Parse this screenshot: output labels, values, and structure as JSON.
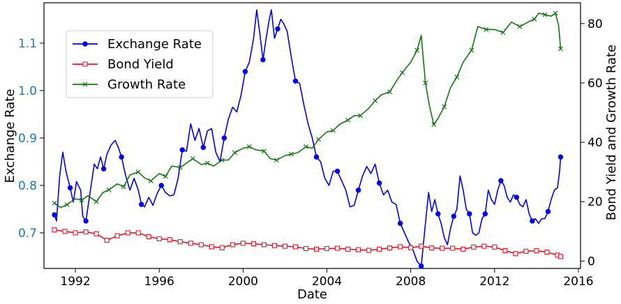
{
  "chart_data": {
    "type": "line",
    "title": "",
    "xlabel": "Date",
    "ylabel_left": "Exchange Rate",
    "ylabel_right": "Bond Yield and Growth Rate",
    "xlim": [
      1990.5,
      2016.1
    ],
    "ylim_left": [
      0.625,
      1.185
    ],
    "ylim_right": [
      -2.5,
      87
    ],
    "x_ticks": [
      {
        "v": 1992,
        "label": "1992"
      },
      {
        "v": 1996,
        "label": "1996"
      },
      {
        "v": 2000,
        "label": "2000"
      },
      {
        "v": 2004,
        "label": "2004"
      },
      {
        "v": 2008,
        "label": "2008"
      },
      {
        "v": 2012,
        "label": "2012"
      },
      {
        "v": 2016,
        "label": "2016"
      }
    ],
    "y_ticks_left": [
      {
        "v": 0.7,
        "label": "0.7"
      },
      {
        "v": 0.8,
        "label": "0.8"
      },
      {
        "v": 0.9,
        "label": "0.9"
      },
      {
        "v": 1.0,
        "label": "1.0"
      },
      {
        "v": 1.1,
        "label": "1.1"
      }
    ],
    "y_ticks_right": [
      {
        "v": 0,
        "label": "0"
      },
      {
        "v": 20,
        "label": "20"
      },
      {
        "v": 40,
        "label": "40"
      },
      {
        "v": 60,
        "label": "60"
      },
      {
        "v": 80,
        "label": "80"
      }
    ],
    "grid": false,
    "legend_position": "top-left",
    "colors": {
      "left_axis_label": "#1f77b4",
      "exchange": "#0000ee",
      "bond": "#ee1122",
      "growth": "#117711"
    },
    "series": [
      {
        "name": "Exchange Rate",
        "axis": "left",
        "marker": "circle",
        "points": [
          [
            1991.0,
            0.738
          ],
          [
            1991.1,
            0.725
          ],
          [
            1991.25,
            0.82
          ],
          [
            1991.4,
            0.87
          ],
          [
            1991.55,
            0.83
          ],
          [
            1991.75,
            0.795
          ],
          [
            1991.9,
            0.765
          ],
          [
            1992.05,
            0.808
          ],
          [
            1992.25,
            0.79
          ],
          [
            1992.35,
            0.735
          ],
          [
            1992.5,
            0.725
          ],
          [
            1992.7,
            0.785
          ],
          [
            1992.9,
            0.845
          ],
          [
            1993.05,
            0.835
          ],
          [
            1993.2,
            0.86
          ],
          [
            1993.35,
            0.835
          ],
          [
            1993.5,
            0.865
          ],
          [
            1993.7,
            0.885
          ],
          [
            1993.9,
            0.895
          ],
          [
            1994.05,
            0.88
          ],
          [
            1994.2,
            0.86
          ],
          [
            1994.4,
            0.82
          ],
          [
            1994.6,
            0.79
          ],
          [
            1994.8,
            0.815
          ],
          [
            1995.0,
            0.79
          ],
          [
            1995.15,
            0.76
          ],
          [
            1995.3,
            0.755
          ],
          [
            1995.5,
            0.775
          ],
          [
            1995.7,
            0.758
          ],
          [
            1995.9,
            0.783
          ],
          [
            1996.1,
            0.8
          ],
          [
            1996.3,
            0.785
          ],
          [
            1996.5,
            0.778
          ],
          [
            1996.7,
            0.78
          ],
          [
            1996.9,
            0.815
          ],
          [
            1997.1,
            0.875
          ],
          [
            1997.3,
            0.872
          ],
          [
            1997.5,
            0.93
          ],
          [
            1997.7,
            0.895
          ],
          [
            1997.9,
            0.92
          ],
          [
            1998.1,
            0.88
          ],
          [
            1998.3,
            0.915
          ],
          [
            1998.5,
            0.92
          ],
          [
            1998.7,
            0.87
          ],
          [
            1998.9,
            0.85
          ],
          [
            1999.1,
            0.9
          ],
          [
            1999.3,
            0.94
          ],
          [
            1999.5,
            0.965
          ],
          [
            1999.7,
            0.955
          ],
          [
            1999.9,
            0.99
          ],
          [
            2000.1,
            1.04
          ],
          [
            2000.3,
            1.06
          ],
          [
            2000.5,
            1.11
          ],
          [
            2000.65,
            1.17
          ],
          [
            2000.8,
            1.12
          ],
          [
            2000.95,
            1.065
          ],
          [
            2001.1,
            1.11
          ],
          [
            2001.25,
            1.15
          ],
          [
            2001.35,
            1.17
          ],
          [
            2001.5,
            1.11
          ],
          [
            2001.65,
            1.13
          ],
          [
            2001.8,
            1.15
          ],
          [
            2001.95,
            1.14
          ],
          [
            2002.1,
            1.125
          ],
          [
            2002.3,
            1.07
          ],
          [
            2002.5,
            1.02
          ],
          [
            2002.7,
            1.015
          ],
          [
            2002.9,
            0.97
          ],
          [
            2003.1,
            0.93
          ],
          [
            2003.3,
            0.9
          ],
          [
            2003.5,
            0.86
          ],
          [
            2003.7,
            0.85
          ],
          [
            2003.9,
            0.815
          ],
          [
            2004.1,
            0.8
          ],
          [
            2004.3,
            0.83
          ],
          [
            2004.5,
            0.83
          ],
          [
            2004.7,
            0.81
          ],
          [
            2004.9,
            0.79
          ],
          [
            2005.1,
            0.755
          ],
          [
            2005.3,
            0.758
          ],
          [
            2005.5,
            0.79
          ],
          [
            2005.7,
            0.82
          ],
          [
            2005.9,
            0.84
          ],
          [
            2006.1,
            0.825
          ],
          [
            2006.3,
            0.845
          ],
          [
            2006.5,
            0.805
          ],
          [
            2006.7,
            0.78
          ],
          [
            2006.9,
            0.79
          ],
          [
            2007.1,
            0.765
          ],
          [
            2007.3,
            0.76
          ],
          [
            2007.5,
            0.72
          ],
          [
            2007.7,
            0.7
          ],
          [
            2007.9,
            0.68
          ],
          [
            2008.1,
            0.665
          ],
          [
            2008.3,
            0.64
          ],
          [
            2008.5,
            0.63
          ],
          [
            2008.7,
            0.72
          ],
          [
            2008.85,
            0.785
          ],
          [
            2009.0,
            0.745
          ],
          [
            2009.15,
            0.77
          ],
          [
            2009.3,
            0.74
          ],
          [
            2009.45,
            0.72
          ],
          [
            2009.6,
            0.69
          ],
          [
            2009.75,
            0.675
          ],
          [
            2009.9,
            0.71
          ],
          [
            2010.05,
            0.735
          ],
          [
            2010.2,
            0.75
          ],
          [
            2010.35,
            0.82
          ],
          [
            2010.5,
            0.79
          ],
          [
            2010.65,
            0.75
          ],
          [
            2010.8,
            0.74
          ],
          [
            2010.95,
            0.7
          ],
          [
            2011.1,
            0.695
          ],
          [
            2011.25,
            0.7
          ],
          [
            2011.4,
            0.73
          ],
          [
            2011.55,
            0.74
          ],
          [
            2011.7,
            0.79
          ],
          [
            2011.85,
            0.77
          ],
          [
            2012.0,
            0.76
          ],
          [
            2012.15,
            0.79
          ],
          [
            2012.3,
            0.81
          ],
          [
            2012.45,
            0.8
          ],
          [
            2012.6,
            0.775
          ],
          [
            2012.75,
            0.765
          ],
          [
            2012.9,
            0.78
          ],
          [
            2013.05,
            0.775
          ],
          [
            2013.2,
            0.76
          ],
          [
            2013.35,
            0.755
          ],
          [
            2013.5,
            0.77
          ],
          [
            2013.65,
            0.74
          ],
          [
            2013.8,
            0.725
          ],
          [
            2013.95,
            0.73
          ],
          [
            2014.1,
            0.72
          ],
          [
            2014.25,
            0.73
          ],
          [
            2014.4,
            0.73
          ],
          [
            2014.55,
            0.745
          ],
          [
            2014.7,
            0.77
          ],
          [
            2014.85,
            0.79
          ],
          [
            2015.0,
            0.795
          ],
          [
            2015.1,
            0.83
          ],
          [
            2015.15,
            0.86
          ]
        ]
      },
      {
        "name": "Bond Yield",
        "axis": "right",
        "marker": "square",
        "points": [
          [
            1991.0,
            10.5
          ],
          [
            1991.5,
            10.0
          ],
          [
            1992.0,
            9.5
          ],
          [
            1992.5,
            9.8
          ],
          [
            1993.0,
            9.2
          ],
          [
            1993.5,
            7.0
          ],
          [
            1994.0,
            8.5
          ],
          [
            1994.5,
            9.5
          ],
          [
            1995.0,
            9.5
          ],
          [
            1995.5,
            8.2
          ],
          [
            1996.0,
            7.5
          ],
          [
            1996.5,
            7.2
          ],
          [
            1997.0,
            6.5
          ],
          [
            1997.5,
            6.0
          ],
          [
            1998.0,
            5.5
          ],
          [
            1998.5,
            4.8
          ],
          [
            1999.0,
            4.5
          ],
          [
            1999.5,
            5.5
          ],
          [
            2000.0,
            6.0
          ],
          [
            2000.5,
            5.8
          ],
          [
            2001.0,
            5.5
          ],
          [
            2001.5,
            5.2
          ],
          [
            2002.0,
            5.0
          ],
          [
            2002.5,
            4.8
          ],
          [
            2003.0,
            4.2
          ],
          [
            2003.5,
            4.0
          ],
          [
            2004.0,
            4.2
          ],
          [
            2004.5,
            4.3
          ],
          [
            2005.0,
            4.0
          ],
          [
            2005.5,
            3.8
          ],
          [
            2006.0,
            3.6
          ],
          [
            2006.5,
            4.0
          ],
          [
            2007.0,
            4.4
          ],
          [
            2007.5,
            4.8
          ],
          [
            2008.0,
            4.5
          ],
          [
            2008.5,
            5.0
          ],
          [
            2009.0,
            4.4
          ],
          [
            2009.5,
            4.3
          ],
          [
            2010.0,
            4.3
          ],
          [
            2010.5,
            4.0
          ],
          [
            2011.0,
            4.7
          ],
          [
            2011.5,
            5.0
          ],
          [
            2012.0,
            4.7
          ],
          [
            2012.5,
            3.5
          ],
          [
            2013.0,
            2.5
          ],
          [
            2013.5,
            3.3
          ],
          [
            2014.0,
            3.5
          ],
          [
            2014.5,
            3.0
          ],
          [
            2015.0,
            2.0
          ],
          [
            2015.15,
            1.5
          ]
        ]
      },
      {
        "name": "Growth Rate",
        "axis": "right",
        "marker": "x",
        "points": [
          [
            1991.0,
            19.5
          ],
          [
            1991.3,
            18.0
          ],
          [
            1991.6,
            19.0
          ],
          [
            1992.0,
            21.0
          ],
          [
            1992.3,
            20.5
          ],
          [
            1992.6,
            22.0
          ],
          [
            1993.0,
            20.0
          ],
          [
            1993.3,
            23.0
          ],
          [
            1993.6,
            24.0
          ],
          [
            1994.0,
            26.0
          ],
          [
            1994.3,
            25.0
          ],
          [
            1994.6,
            29.0
          ],
          [
            1995.0,
            30.0
          ],
          [
            1995.3,
            28.0
          ],
          [
            1995.6,
            27.0
          ],
          [
            1996.0,
            29.5
          ],
          [
            1996.3,
            28.5
          ],
          [
            1996.6,
            32.0
          ],
          [
            1997.0,
            31.5
          ],
          [
            1997.3,
            33.0
          ],
          [
            1997.6,
            34.5
          ],
          [
            1998.0,
            32.5
          ],
          [
            1998.3,
            33.0
          ],
          [
            1998.6,
            32.0
          ],
          [
            1999.0,
            34.0
          ],
          [
            1999.3,
            34.0
          ],
          [
            1999.6,
            36.5
          ],
          [
            2000.0,
            38.0
          ],
          [
            2000.3,
            38.5
          ],
          [
            2000.6,
            37.5
          ],
          [
            2001.0,
            37.0
          ],
          [
            2001.3,
            34.5
          ],
          [
            2001.6,
            34.0
          ],
          [
            2002.0,
            35.5
          ],
          [
            2002.3,
            36.0
          ],
          [
            2002.6,
            36.5
          ],
          [
            2003.0,
            38.5
          ],
          [
            2003.3,
            38.0
          ],
          [
            2003.6,
            41.0
          ],
          [
            2004.0,
            43.5
          ],
          [
            2004.3,
            44.0
          ],
          [
            2004.6,
            46.0
          ],
          [
            2005.0,
            47.5
          ],
          [
            2005.3,
            49.0
          ],
          [
            2005.6,
            49.0
          ],
          [
            2006.0,
            51.5
          ],
          [
            2006.3,
            54.0
          ],
          [
            2006.6,
            56.0
          ],
          [
            2007.0,
            57.0
          ],
          [
            2007.3,
            60.5
          ],
          [
            2007.6,
            63.5
          ],
          [
            2008.0,
            67.0
          ],
          [
            2008.3,
            71.0
          ],
          [
            2008.5,
            76.0
          ],
          [
            2008.7,
            60.0
          ],
          [
            2008.9,
            52.0
          ],
          [
            2009.1,
            46.0
          ],
          [
            2009.3,
            48.0
          ],
          [
            2009.6,
            52.0
          ],
          [
            2009.9,
            58.5
          ],
          [
            2010.2,
            62.0
          ],
          [
            2010.5,
            67.0
          ],
          [
            2010.9,
            71.0
          ],
          [
            2011.2,
            79.0
          ],
          [
            2011.6,
            78.0
          ],
          [
            2012.0,
            78.0
          ],
          [
            2012.4,
            77.0
          ],
          [
            2012.8,
            80.5
          ],
          [
            2013.2,
            79.0
          ],
          [
            2013.6,
            80.5
          ],
          [
            2013.9,
            81.5
          ],
          [
            2014.1,
            83.5
          ],
          [
            2014.4,
            83.0
          ],
          [
            2014.7,
            82.5
          ],
          [
            2014.9,
            83.5
          ],
          [
            2015.05,
            79.5
          ],
          [
            2015.15,
            71.5
          ]
        ]
      }
    ]
  }
}
